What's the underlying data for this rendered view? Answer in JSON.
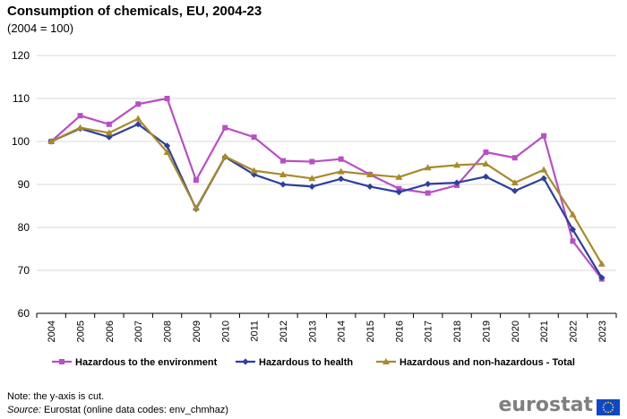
{
  "header": {
    "title": "Consumption of chemicals, EU, 2004-23",
    "subtitle": "(2004 = 100)"
  },
  "footer": {
    "note": "Note: the y-axis is cut.",
    "source_label": "Source:",
    "source_text": " Eurostat (online data codes: env_chmhaz)",
    "logo_text": "eurostat"
  },
  "colors": {
    "environment": "#b84fc4",
    "health": "#2d3f9e",
    "total": "#a88a2a",
    "logo_flag": "#0e47cb",
    "logo_stars": "#ffdd00"
  },
  "chart_data": {
    "type": "line",
    "title": "Consumption of chemicals, EU, 2004-23",
    "subtitle": "(2004 = 100)",
    "xlabel": "",
    "ylabel": "",
    "ylim": [
      60,
      120
    ],
    "yticks": [
      60,
      70,
      80,
      90,
      100,
      110,
      120
    ],
    "grid": true,
    "legend_position": "bottom",
    "categories": [
      "2004",
      "2005",
      "2006",
      "2007",
      "2008",
      "2009",
      "2010",
      "2011",
      "2012",
      "2013",
      "2014",
      "2015",
      "2016",
      "2017",
      "2018",
      "2019",
      "2020",
      "2021",
      "2022",
      "2023"
    ],
    "series": [
      {
        "name": "Hazardous to the environment",
        "marker": "square",
        "color": "#b84fc4",
        "values": [
          100,
          106,
          104,
          108.7,
          110,
          91,
          103.2,
          101,
          95.5,
          95.3,
          95.9,
          92.3,
          89,
          88,
          89.8,
          97.5,
          96.2,
          101.3,
          76.8,
          68
        ]
      },
      {
        "name": "Hazardous to health",
        "marker": "diamond",
        "color": "#2d3f9e",
        "values": [
          100,
          103,
          101,
          104,
          99,
          84.3,
          96.4,
          92.3,
          90,
          89.5,
          91.3,
          89.5,
          88.2,
          90.1,
          90.4,
          91.8,
          88.5,
          91.4,
          79.5,
          68.3
        ]
      },
      {
        "name": "Hazardous and non-hazardous - Total",
        "marker": "triangle",
        "color": "#a88a2a",
        "values": [
          100,
          103.2,
          102,
          105.3,
          97.5,
          84.5,
          96.5,
          93.2,
          92.3,
          91.4,
          93,
          92.3,
          91.7,
          93.9,
          94.5,
          94.8,
          90.4,
          93.4,
          83,
          71.5
        ]
      }
    ]
  }
}
